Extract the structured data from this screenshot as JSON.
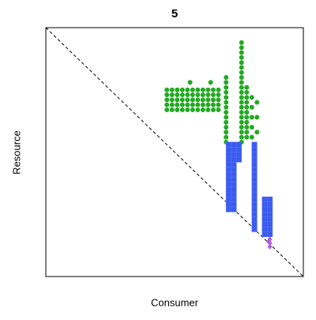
{
  "chart_data": {
    "type": "scatter",
    "title": "5",
    "xlabel": "Consumer",
    "ylabel": "Resource",
    "xlim": [
      0,
      100
    ],
    "ylim": [
      0,
      100
    ],
    "series": [
      {
        "color": "#22aa22",
        "marker": "circle",
        "x": [
          47,
          49,
          51,
          53,
          55,
          57,
          59,
          61,
          63,
          65,
          67,
          47,
          49,
          51,
          53,
          55,
          57,
          59,
          61,
          63,
          65,
          67,
          47,
          49,
          51,
          53,
          55,
          57,
          59,
          61,
          63,
          65,
          67,
          47,
          49,
          51,
          53,
          55,
          57,
          59,
          61,
          63,
          65,
          67,
          47,
          49,
          51,
          53,
          55,
          57,
          59,
          61,
          63,
          65,
          67,
          56,
          64,
          70,
          70,
          70,
          70,
          70,
          70,
          70,
          70,
          70,
          70,
          70,
          70,
          70,
          70,
          76,
          76,
          76,
          76,
          76,
          76,
          76,
          76,
          76,
          76,
          76,
          76,
          76,
          76,
          76,
          76,
          76,
          76,
          76,
          76,
          76,
          78,
          78,
          78,
          78,
          78,
          78,
          78,
          78,
          78,
          78,
          78,
          80,
          80,
          80,
          80,
          80,
          82,
          82,
          82
        ],
        "y": [
          67,
          67,
          67,
          67,
          67,
          67,
          67,
          67,
          67,
          67,
          67,
          69,
          69,
          69,
          69,
          69,
          69,
          69,
          69,
          69,
          69,
          69,
          71,
          71,
          71,
          71,
          71,
          71,
          71,
          71,
          71,
          71,
          71,
          73,
          73,
          73,
          73,
          73,
          73,
          73,
          73,
          73,
          73,
          73,
          75,
          75,
          75,
          75,
          75,
          75,
          75,
          75,
          75,
          75,
          75,
          78,
          78,
          80,
          78,
          54,
          56,
          58,
          60,
          62,
          64,
          66,
          68,
          70,
          72,
          74,
          76,
          54,
          56,
          58,
          60,
          62,
          64,
          66,
          68,
          70,
          72,
          74,
          76,
          78,
          80,
          82,
          84,
          86,
          88,
          90,
          92,
          94,
          56,
          58,
          60,
          62,
          64,
          66,
          68,
          70,
          72,
          74,
          76,
          56,
          60,
          64,
          68,
          72,
          58,
          64,
          70
        ]
      },
      {
        "color": "#3b5bf0",
        "marker": "square",
        "x": [
          71,
          71,
          71,
          71,
          71,
          71,
          71,
          71,
          71,
          71,
          71,
          71,
          71,
          71,
          73,
          73,
          73,
          73,
          73,
          73,
          73,
          73,
          73,
          73,
          73,
          73,
          73,
          73,
          75,
          75,
          75,
          75,
          81,
          81,
          81,
          81,
          81,
          81,
          81,
          81,
          81,
          81,
          81,
          81,
          81,
          81,
          81,
          81,
          81,
          81,
          85,
          85,
          85,
          85,
          85,
          85,
          85,
          85,
          87,
          87,
          87,
          87,
          87,
          87,
          87,
          87
        ],
        "y": [
          27,
          29,
          31,
          33,
          35,
          37,
          39,
          41,
          43,
          45,
          47,
          49,
          51,
          53,
          27,
          29,
          31,
          33,
          35,
          37,
          39,
          41,
          43,
          45,
          47,
          49,
          51,
          53,
          47,
          49,
          51,
          53,
          19,
          21,
          23,
          25,
          27,
          29,
          31,
          33,
          35,
          37,
          39,
          41,
          43,
          45,
          47,
          49,
          51,
          53,
          17,
          19,
          21,
          23,
          25,
          27,
          29,
          31,
          17,
          19,
          21,
          23,
          25,
          27,
          29,
          31
        ]
      },
      {
        "color": "#b05ce0",
        "marker": "diamond",
        "x": [
          87,
          87,
          86.5,
          87
        ],
        "y": [
          15,
          13.5,
          14,
          12
        ]
      }
    ]
  }
}
